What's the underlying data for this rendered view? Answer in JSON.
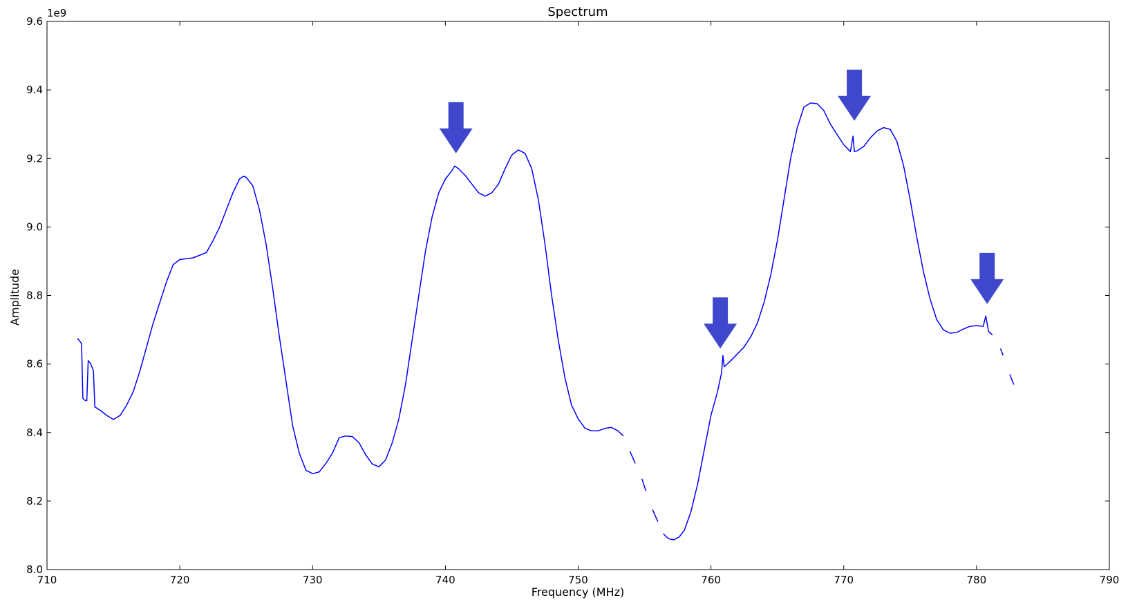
{
  "chart_data": {
    "type": "line",
    "title": "Spectrum",
    "xlabel": "Frequency (MHz)",
    "ylabel": "Amplitude",
    "y_offset_label": "1e9",
    "xlim": [
      710,
      790
    ],
    "ylim": [
      8.0,
      9.6
    ],
    "xticks": [
      710,
      720,
      730,
      740,
      750,
      760,
      770,
      780,
      790
    ],
    "yticks": [
      8.0,
      8.2,
      8.4,
      8.6,
      8.8,
      9.0,
      9.2,
      9.4,
      9.6
    ],
    "grid": false,
    "series": [
      {
        "color": "#0000ff",
        "segments": [
          [
            [
              712.3,
              8.675
            ],
            [
              712.5,
              8.665
            ],
            [
              712.6,
              8.66
            ],
            [
              712.7,
              8.5
            ],
            [
              712.8,
              8.495
            ],
            [
              713.0,
              8.493
            ],
            [
              713.1,
              8.61
            ],
            [
              713.3,
              8.6
            ],
            [
              713.5,
              8.58
            ],
            [
              713.6,
              8.475
            ],
            [
              714.0,
              8.465
            ],
            [
              714.5,
              8.45
            ],
            [
              715.0,
              8.438
            ],
            [
              715.5,
              8.45
            ],
            [
              716.0,
              8.48
            ],
            [
              716.5,
              8.52
            ],
            [
              717.0,
              8.58
            ],
            [
              717.5,
              8.65
            ],
            [
              718.0,
              8.72
            ],
            [
              718.5,
              8.78
            ],
            [
              719.0,
              8.84
            ],
            [
              719.5,
              8.89
            ],
            [
              720.0,
              8.905
            ],
            [
              721.0,
              8.91
            ],
            [
              722.0,
              8.925
            ],
            [
              722.5,
              8.96
            ],
            [
              723.0,
              9.0
            ],
            [
              723.5,
              9.05
            ],
            [
              724.0,
              9.1
            ],
            [
              724.5,
              9.14
            ],
            [
              724.8,
              9.148
            ],
            [
              725.0,
              9.145
            ],
            [
              725.5,
              9.12
            ],
            [
              726.0,
              9.05
            ],
            [
              726.5,
              8.95
            ],
            [
              727.0,
              8.82
            ],
            [
              727.5,
              8.68
            ],
            [
              728.0,
              8.55
            ],
            [
              728.5,
              8.42
            ],
            [
              729.0,
              8.34
            ],
            [
              729.5,
              8.29
            ],
            [
              730.0,
              8.28
            ],
            [
              730.5,
              8.285
            ],
            [
              731.0,
              8.31
            ],
            [
              731.5,
              8.34
            ],
            [
              732.0,
              8.385
            ],
            [
              732.5,
              8.39
            ],
            [
              733.0,
              8.388
            ],
            [
              733.5,
              8.37
            ],
            [
              734.0,
              8.335
            ],
            [
              734.5,
              8.308
            ],
            [
              735.0,
              8.3
            ],
            [
              735.5,
              8.32
            ],
            [
              736.0,
              8.37
            ],
            [
              736.5,
              8.44
            ],
            [
              737.0,
              8.54
            ],
            [
              737.5,
              8.67
            ],
            [
              738.0,
              8.8
            ],
            [
              738.5,
              8.93
            ],
            [
              739.0,
              9.03
            ],
            [
              739.5,
              9.1
            ],
            [
              740.0,
              9.14
            ],
            [
              740.5,
              9.165
            ],
            [
              740.7,
              9.178
            ],
            [
              741.0,
              9.17
            ],
            [
              741.5,
              9.15
            ],
            [
              742.0,
              9.125
            ],
            [
              742.5,
              9.1
            ],
            [
              743.0,
              9.09
            ],
            [
              743.5,
              9.1
            ],
            [
              744.0,
              9.125
            ],
            [
              744.5,
              9.17
            ],
            [
              745.0,
              9.21
            ],
            [
              745.5,
              9.225
            ],
            [
              746.0,
              9.215
            ],
            [
              746.5,
              9.17
            ],
            [
              747.0,
              9.08
            ],
            [
              747.5,
              8.95
            ],
            [
              748.0,
              8.8
            ],
            [
              748.5,
              8.67
            ],
            [
              749.0,
              8.56
            ],
            [
              749.5,
              8.48
            ],
            [
              750.0,
              8.44
            ],
            [
              750.5,
              8.413
            ],
            [
              751.0,
              8.405
            ],
            [
              751.5,
              8.405
            ],
            [
              752.0,
              8.412
            ],
            [
              752.5,
              8.415
            ],
            [
              753.0,
              8.405
            ],
            [
              753.4,
              8.39
            ]
          ],
          [
            [
              753.9,
              8.345
            ],
            [
              754.3,
              8.31
            ]
          ],
          [
            [
              754.8,
              8.265
            ],
            [
              755.1,
              8.23
            ]
          ],
          [
            [
              755.6,
              8.175
            ],
            [
              756.0,
              8.14
            ]
          ],
          [
            [
              756.4,
              8.105
            ],
            [
              756.8,
              8.09
            ],
            [
              757.2,
              8.087
            ],
            [
              757.6,
              8.095
            ],
            [
              758.0,
              8.115
            ],
            [
              758.5,
              8.17
            ],
            [
              759.0,
              8.25
            ],
            [
              759.5,
              8.35
            ],
            [
              760.0,
              8.45
            ],
            [
              760.5,
              8.52
            ],
            [
              760.8,
              8.575
            ],
            [
              760.9,
              8.625
            ],
            [
              761.0,
              8.592
            ],
            [
              761.5,
              8.61
            ],
            [
              762.0,
              8.63
            ],
            [
              762.5,
              8.65
            ],
            [
              763.0,
              8.68
            ],
            [
              763.5,
              8.72
            ],
            [
              764.0,
              8.78
            ],
            [
              764.5,
              8.86
            ],
            [
              765.0,
              8.96
            ],
            [
              765.5,
              9.08
            ],
            [
              766.0,
              9.2
            ],
            [
              766.5,
              9.29
            ],
            [
              767.0,
              9.35
            ],
            [
              767.5,
              9.362
            ],
            [
              768.0,
              9.36
            ],
            [
              768.5,
              9.34
            ],
            [
              769.0,
              9.3
            ],
            [
              769.5,
              9.27
            ],
            [
              770.0,
              9.24
            ],
            [
              770.5,
              9.22
            ],
            [
              770.7,
              9.265
            ],
            [
              770.8,
              9.22
            ],
            [
              771.0,
              9.222
            ],
            [
              771.5,
              9.235
            ],
            [
              772.0,
              9.26
            ],
            [
              772.5,
              9.28
            ],
            [
              773.0,
              9.29
            ],
            [
              773.5,
              9.285
            ],
            [
              774.0,
              9.25
            ],
            [
              774.5,
              9.18
            ],
            [
              775.0,
              9.08
            ],
            [
              775.5,
              8.97
            ],
            [
              776.0,
              8.87
            ],
            [
              776.5,
              8.79
            ],
            [
              777.0,
              8.73
            ],
            [
              777.5,
              8.7
            ],
            [
              778.0,
              8.69
            ],
            [
              778.5,
              8.692
            ],
            [
              779.0,
              8.702
            ],
            [
              779.5,
              8.71
            ],
            [
              780.0,
              8.712
            ],
            [
              780.5,
              8.71
            ],
            [
              780.7,
              8.74
            ],
            [
              780.9,
              8.695
            ],
            [
              781.2,
              8.685
            ]
          ],
          [
            [
              781.8,
              8.645
            ],
            [
              782.0,
              8.625
            ]
          ],
          [
            [
              782.5,
              8.57
            ],
            [
              782.8,
              8.54
            ]
          ]
        ]
      }
    ],
    "annotations": [
      {
        "type": "arrow-down",
        "x": 740.8,
        "y_tip": 9.215,
        "color": "#3f48cc"
      },
      {
        "type": "arrow-down",
        "x": 760.7,
        "y_tip": 8.645,
        "color": "#3f48cc"
      },
      {
        "type": "arrow-down",
        "x": 770.8,
        "y_tip": 9.31,
        "color": "#3f48cc"
      },
      {
        "type": "arrow-down",
        "x": 780.8,
        "y_tip": 8.775,
        "color": "#3f48cc"
      }
    ]
  }
}
